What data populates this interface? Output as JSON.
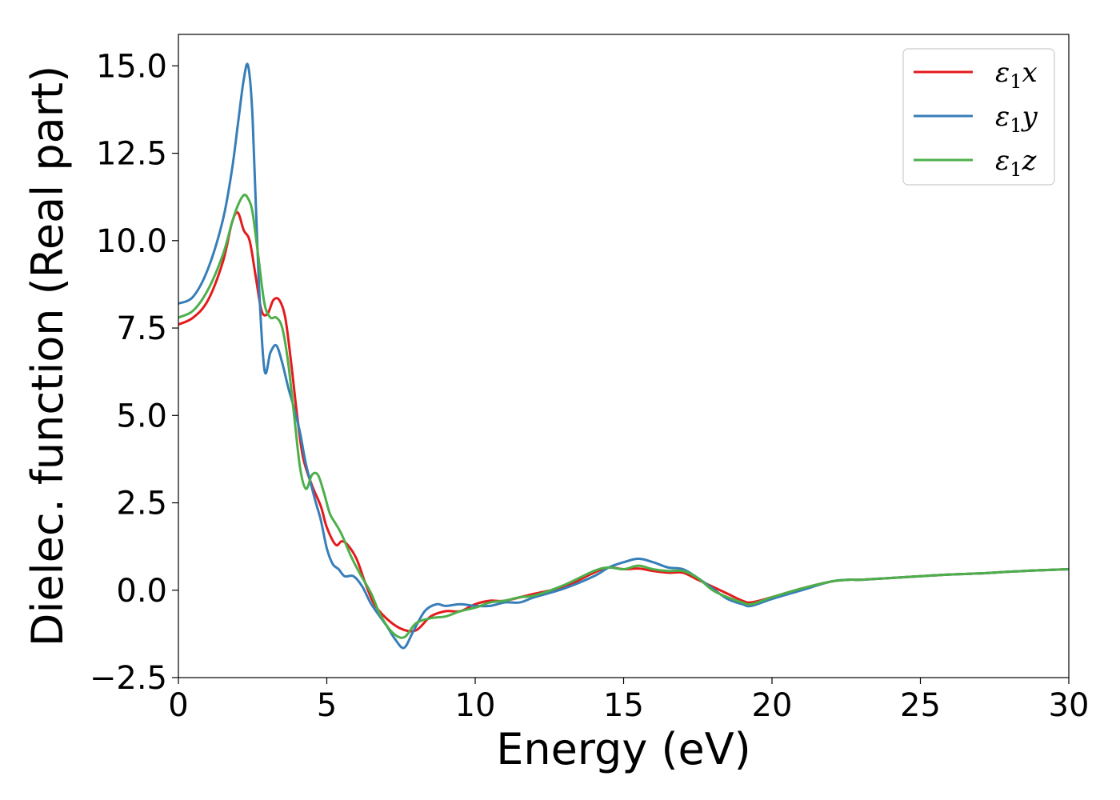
{
  "chart_data": {
    "type": "line",
    "title": "",
    "xlabel": "Energy (eV)",
    "ylabel": "Dielec. function (Real part)",
    "xlim": [
      0,
      30
    ],
    "ylim": [
      -2.5,
      15.9
    ],
    "xticks": [
      0,
      5,
      10,
      15,
      20,
      25,
      30
    ],
    "xtick_labels": [
      "0",
      "5",
      "10",
      "15",
      "20",
      "25",
      "30"
    ],
    "yticks": [
      -2.5,
      0.0,
      2.5,
      5.0,
      7.5,
      10.0,
      12.5,
      15.0
    ],
    "ytick_labels": [
      "−2.5",
      "0.0",
      "2.5",
      "5.0",
      "7.5",
      "10.0",
      "12.5",
      "15.0"
    ],
    "grid": false,
    "legend_position": "top-right",
    "series": [
      {
        "name": "ε₁x",
        "legend_symbol": "ε",
        "legend_sub": "1",
        "legend_suffix": "x",
        "color": "#e41a1c",
        "x": [
          0,
          0.5,
          1,
          1.5,
          1.8,
          2.0,
          2.2,
          2.4,
          2.6,
          2.8,
          3.0,
          3.2,
          3.4,
          3.6,
          3.8,
          4.0,
          4.2,
          4.5,
          4.8,
          5.0,
          5.3,
          5.5,
          5.7,
          6.0,
          6.3,
          6.6,
          7.0,
          7.5,
          8.0,
          8.5,
          9.0,
          9.5,
          10.0,
          10.5,
          11.0,
          12.0,
          13.0,
          14.0,
          14.5,
          15.0,
          15.5,
          16.0,
          16.5,
          17.0,
          17.5,
          18.0,
          18.5,
          19.0,
          19.3,
          20.0,
          21.0,
          22.0,
          22.6,
          23.0,
          24.0,
          25.0,
          26.0,
          27.0,
          28.0,
          29.0,
          30.0
        ],
        "y": [
          7.6,
          7.8,
          8.3,
          9.4,
          10.5,
          10.8,
          10.3,
          10.0,
          9.0,
          8.0,
          7.9,
          8.3,
          8.3,
          7.8,
          6.5,
          5.0,
          3.8,
          3.0,
          2.4,
          1.8,
          1.3,
          1.4,
          1.3,
          0.9,
          0.2,
          -0.4,
          -0.8,
          -1.1,
          -1.15,
          -0.75,
          -0.6,
          -0.6,
          -0.4,
          -0.3,
          -0.3,
          -0.1,
          0.1,
          0.5,
          0.65,
          0.6,
          0.62,
          0.55,
          0.5,
          0.5,
          0.3,
          0.1,
          -0.1,
          -0.3,
          -0.35,
          -0.2,
          0.05,
          0.25,
          0.3,
          0.3,
          0.35,
          0.4,
          0.45,
          0.48,
          0.53,
          0.57,
          0.6
        ]
      },
      {
        "name": "ε₁y",
        "legend_symbol": "ε",
        "legend_sub": "1",
        "legend_suffix": "y",
        "color": "#377eb8",
        "x": [
          0,
          0.5,
          1,
          1.5,
          1.8,
          2.0,
          2.2,
          2.35,
          2.5,
          2.7,
          2.9,
          3.1,
          3.3,
          3.5,
          3.7,
          3.9,
          4.1,
          4.3,
          4.6,
          4.8,
          5.0,
          5.2,
          5.4,
          5.6,
          5.9,
          6.2,
          6.5,
          7.0,
          7.3,
          7.6,
          7.9,
          8.3,
          8.7,
          9.0,
          9.5,
          10.0,
          10.5,
          11.0,
          11.5,
          12.0,
          13.0,
          14.0,
          14.5,
          15.0,
          15.5,
          16.0,
          16.5,
          17.0,
          17.5,
          18.0,
          18.5,
          19.0,
          19.3,
          20.0,
          21.0,
          22.0,
          22.6,
          23.0,
          24.0,
          25.0,
          26.0,
          27.0,
          28.0,
          29.0,
          30.0
        ],
        "y": [
          8.2,
          8.4,
          9.2,
          10.6,
          12.0,
          13.3,
          14.6,
          15.0,
          13.5,
          9.0,
          6.3,
          6.8,
          7.0,
          6.5,
          5.8,
          5.2,
          4.5,
          3.6,
          2.6,
          2.0,
          1.2,
          0.75,
          0.6,
          0.4,
          0.4,
          0.1,
          -0.4,
          -1.0,
          -1.4,
          -1.65,
          -1.2,
          -0.6,
          -0.4,
          -0.45,
          -0.4,
          -0.45,
          -0.45,
          -0.35,
          -0.35,
          -0.2,
          0.05,
          0.4,
          0.65,
          0.8,
          0.9,
          0.8,
          0.65,
          0.6,
          0.35,
          0.05,
          -0.25,
          -0.4,
          -0.45,
          -0.25,
          0.0,
          0.25,
          0.3,
          0.3,
          0.35,
          0.4,
          0.45,
          0.48,
          0.53,
          0.57,
          0.6
        ]
      },
      {
        "name": "ε₁z",
        "legend_symbol": "ε",
        "legend_sub": "1",
        "legend_suffix": "z",
        "color": "#4daf4a",
        "x": [
          0,
          0.5,
          1,
          1.5,
          1.8,
          2.0,
          2.2,
          2.35,
          2.5,
          2.7,
          2.9,
          3.1,
          3.3,
          3.5,
          3.7,
          3.9,
          4.1,
          4.3,
          4.5,
          4.7,
          4.9,
          5.1,
          5.3,
          5.5,
          5.8,
          6.1,
          6.5,
          6.8,
          7.2,
          7.6,
          8.0,
          8.5,
          9.0,
          9.5,
          10.0,
          10.5,
          11.0,
          11.5,
          12.0,
          13.0,
          14.0,
          14.5,
          15.0,
          15.5,
          16.0,
          16.5,
          17.0,
          17.5,
          18.0,
          18.5,
          19.0,
          19.3,
          20.0,
          21.0,
          22.0,
          22.6,
          23.0,
          24.0,
          25.0,
          26.0,
          27.0,
          28.0,
          29.0,
          30.0
        ],
        "y": [
          7.8,
          8.0,
          8.6,
          9.6,
          10.5,
          11.0,
          11.3,
          11.2,
          10.8,
          9.5,
          8.2,
          7.8,
          7.8,
          7.5,
          6.5,
          5.0,
          3.5,
          2.9,
          3.3,
          3.3,
          2.8,
          2.2,
          1.9,
          1.6,
          1.0,
          0.5,
          -0.1,
          -0.7,
          -1.2,
          -1.35,
          -0.95,
          -0.8,
          -0.75,
          -0.6,
          -0.5,
          -0.35,
          -0.3,
          -0.2,
          -0.15,
          0.15,
          0.55,
          0.65,
          0.6,
          0.7,
          0.6,
          0.55,
          0.55,
          0.35,
          0.0,
          -0.2,
          -0.35,
          -0.4,
          -0.2,
          0.05,
          0.25,
          0.3,
          0.3,
          0.35,
          0.4,
          0.45,
          0.48,
          0.53,
          0.57,
          0.6
        ]
      }
    ]
  }
}
